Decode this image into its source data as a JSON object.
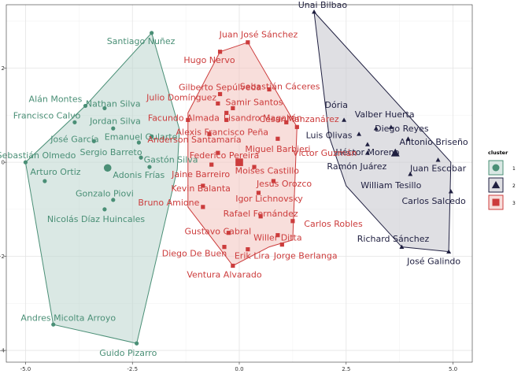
{
  "chart_data": {
    "type": "scatter",
    "xlim": [
      -5.45,
      5.45
    ],
    "ylim": [
      -4.25,
      3.35
    ],
    "x_ticks": [
      -5.0,
      -2.5,
      0.0,
      2.5,
      5.0
    ],
    "x_tick_labels": [
      "-5.0",
      "-2.5",
      "0.0",
      "2.5",
      "5.0"
    ],
    "y_ticks": [
      -4,
      -2,
      0,
      2
    ],
    "y_tick_labels": [
      "-4",
      "-2",
      "0",
      "2"
    ],
    "grid": true,
    "legend": {
      "title": "cluster",
      "position": "right",
      "entries": [
        {
          "label": "1",
          "shape": "circle",
          "color": "#4a8f76"
        },
        {
          "label": "2",
          "shape": "triangle",
          "color": "#1f1f40"
        },
        {
          "label": "3",
          "shape": "square",
          "color": "#cc3c3c"
        }
      ]
    },
    "clusters": [
      {
        "id": "1",
        "shape": "circle",
        "color": "#4a8f76",
        "fill": "#bcd6cd",
        "hull": [
          [
            -2.05,
            2.75
          ],
          [
            -1.4,
            0.7
          ],
          [
            -1.45,
            -0.15
          ],
          [
            -2.4,
            -3.85
          ],
          [
            -4.35,
            -3.45
          ],
          [
            -5.0,
            0.0
          ],
          [
            -3.6,
            1.2
          ]
        ],
        "centroid": [
          -3.08,
          -0.12
        ],
        "points": [
          {
            "name": "Santiago Nuñez",
            "x": -2.05,
            "y": 2.75,
            "lx": -2.3,
            "ly": 2.58
          },
          {
            "name": "Alán Montes",
            "x": -3.6,
            "y": 1.2,
            "lx": -4.3,
            "ly": 1.35
          },
          {
            "name": "Nathan Silva",
            "x": -3.15,
            "y": 1.15,
            "lx": -2.95,
            "ly": 1.25
          },
          {
            "name": "Francisco Calvo",
            "x": -3.85,
            "y": 0.85,
            "lx": -4.5,
            "ly": 1.0
          },
          {
            "name": "Jordan Silva",
            "x": -2.95,
            "y": 0.72,
            "lx": -2.9,
            "ly": 0.88
          },
          {
            "name": "José García",
            "x": -3.4,
            "y": 0.45,
            "lx": -3.85,
            "ly": 0.5
          },
          {
            "name": "Emanuel Gularte",
            "x": -2.05,
            "y": 0.55,
            "lx": -2.3,
            "ly": 0.55
          },
          {
            "name": "Sergio Barreto",
            "x": -2.35,
            "y": 0.42,
            "lx": -3.0,
            "ly": 0.22
          },
          {
            "name": "Sebastián Olmedo",
            "x": -5.0,
            "y": 0.0,
            "lx": -4.75,
            "ly": 0.15
          },
          {
            "name": "Gastón Silva",
            "x": -2.3,
            "y": 0.1,
            "lx": -1.6,
            "ly": 0.06
          },
          {
            "name": "Arturo Ortiz",
            "x": -4.55,
            "y": -0.4,
            "lx": -4.3,
            "ly": -0.2
          },
          {
            "name": "Adonis Frías",
            "x": -2.1,
            "y": -0.1,
            "lx": -2.35,
            "ly": -0.27
          },
          {
            "name": "Gonzalo Piovi",
            "x": -2.95,
            "y": -0.8,
            "lx": -3.15,
            "ly": -0.66
          },
          {
            "name": "Nicolás Díaz Huincales",
            "x": -3.15,
            "y": -1.0,
            "lx": -3.35,
            "ly": -1.2
          },
          {
            "name": "Andres Micolta Arroyo",
            "x": -4.35,
            "y": -3.45,
            "lx": -4.0,
            "ly": -3.3
          },
          {
            "name": "Guido Pizarro",
            "x": -2.4,
            "y": -3.85,
            "lx": -2.6,
            "ly": -4.05
          }
        ]
      },
      {
        "id": "2",
        "shape": "triangle",
        "color": "#1f1f40",
        "fill": "#c4c4cc",
        "hull": [
          [
            1.75,
            3.2
          ],
          [
            4.95,
            0.0
          ],
          [
            4.9,
            -1.9
          ],
          [
            3.8,
            -1.8
          ],
          [
            2.5,
            -0.5
          ],
          [
            2.1,
            0.55
          ]
        ],
        "centroid": [
          3.65,
          0.2
        ],
        "points": [
          {
            "name": "Unai Bilbao",
            "x": 1.75,
            "y": 3.2,
            "lx": 1.95,
            "ly": 3.35
          },
          {
            "name": "Dória",
            "x": 2.45,
            "y": 0.9,
            "lx": 2.27,
            "ly": 1.22
          },
          {
            "name": "Valber Huerta",
            "x": 3.55,
            "y": 0.75,
            "lx": 3.4,
            "ly": 1.02
          },
          {
            "name": "Luis Olivas",
            "x": 2.8,
            "y": 0.6,
            "lx": 2.1,
            "ly": 0.58
          },
          {
            "name": "Diego Reyes",
            "x": 3.2,
            "y": 0.72,
            "lx": 3.8,
            "ly": 0.72
          },
          {
            "name": "Antonio Briseño",
            "x": 3.95,
            "y": 0.5,
            "lx": 4.55,
            "ly": 0.44
          },
          {
            "name": "Héctor Moreno",
            "x": 3.0,
            "y": 0.38,
            "lx": 3.0,
            "ly": 0.22
          },
          {
            "name": "Ramón Juárez",
            "x": 3.0,
            "y": 0.2,
            "lx": 2.75,
            "ly": -0.08
          },
          {
            "name": "Juan Escobar",
            "x": 4.65,
            "y": 0.05,
            "lx": 4.65,
            "ly": -0.12
          },
          {
            "name": "William Tesillo",
            "x": 4.0,
            "y": -0.25,
            "lx": 3.55,
            "ly": -0.48
          },
          {
            "name": "Carlos Salcedo",
            "x": 4.95,
            "y": -0.62,
            "lx": 4.55,
            "ly": -0.82
          },
          {
            "name": "Richard Sánchez",
            "x": 3.8,
            "y": -1.8,
            "lx": 3.6,
            "ly": -1.62
          },
          {
            "name": "José Galindo",
            "x": 4.9,
            "y": -1.9,
            "lx": 4.55,
            "ly": -2.1
          }
        ]
      },
      {
        "id": "3",
        "shape": "square",
        "color": "#cc3c3c",
        "fill": "#f3c3be",
        "hull": [
          [
            -0.45,
            2.35
          ],
          [
            0.2,
            2.55
          ],
          [
            1.35,
            0.75
          ],
          [
            1.25,
            -1.65
          ],
          [
            0.7,
            -1.8
          ],
          [
            -0.15,
            -2.2
          ],
          [
            -1.2,
            -0.95
          ],
          [
            -1.2,
            1.05
          ]
        ],
        "centroid": [
          0.0,
          0.0
        ],
        "points": [
          {
            "name": "Juan José Sánchez",
            "x": 0.2,
            "y": 2.55,
            "lx": 0.45,
            "ly": 2.72
          },
          {
            "name": "Hugo Nervo",
            "x": -0.45,
            "y": 2.35,
            "lx": -0.7,
            "ly": 2.18
          },
          {
            "name": "Gilberto Sepúlveda",
            "x": -0.45,
            "y": 1.45,
            "lx": -0.45,
            "ly": 1.6
          },
          {
            "name": "Sebastián Cáceres",
            "x": 0.7,
            "y": 1.55,
            "lx": 0.95,
            "ly": 1.62
          },
          {
            "name": "Julio Domínguez",
            "x": -0.5,
            "y": 1.25,
            "lx": -1.35,
            "ly": 1.38
          },
          {
            "name": "Samir Santos",
            "x": -0.15,
            "y": 1.15,
            "lx": 0.35,
            "ly": 1.28
          },
          {
            "name": "Facundo Almada",
            "x": -1.2,
            "y": 0.9,
            "lx": -1.3,
            "ly": 0.95
          },
          {
            "name": "Lisandro Magallán",
            "x": -0.3,
            "y": 1.05,
            "lx": 0.55,
            "ly": 0.95
          },
          {
            "name": "Cesar Manzanárez",
            "x": 1.1,
            "y": 0.85,
            "lx": 1.4,
            "ly": 0.92
          },
          {
            "name": "Alexis Francisco Peña",
            "x": -0.3,
            "y": 0.9,
            "lx": -0.4,
            "ly": 0.65
          },
          {
            "name": "Víctor Guzmán",
            "x": 1.35,
            "y": 0.75,
            "lx": 2.0,
            "ly": 0.2
          },
          {
            "name": "Anderson Santamaría",
            "x": -0.7,
            "y": 0.6,
            "lx": -1.05,
            "ly": 0.49
          },
          {
            "name": "Miguel Barbieri",
            "x": 0.9,
            "y": 0.5,
            "lx": 0.9,
            "ly": 0.29
          },
          {
            "name": "Federico Pereira",
            "x": -0.5,
            "y": 0.2,
            "lx": -0.35,
            "ly": 0.15
          },
          {
            "name": "Moises Castillo",
            "x": 0.35,
            "y": -0.1,
            "lx": 0.65,
            "ly": -0.17
          },
          {
            "name": "Jaine Barreiro",
            "x": -0.65,
            "y": -0.05,
            "lx": -0.9,
            "ly": -0.25
          },
          {
            "name": "Jesús Orozco",
            "x": 0.8,
            "y": -0.4,
            "lx": 1.05,
            "ly": -0.45
          },
          {
            "name": "Kevin Balanta",
            "x": -0.85,
            "y": -0.5,
            "lx": -0.9,
            "ly": -0.55
          },
          {
            "name": "Igor Lichnovsky",
            "x": 0.45,
            "y": -0.65,
            "lx": 0.7,
            "ly": -0.77
          },
          {
            "name": "Bruno Amione",
            "x": -0.85,
            "y": -0.95,
            "lx": -1.65,
            "ly": -0.85
          },
          {
            "name": "Rafael Fernández",
            "x": 0.5,
            "y": -1.15,
            "lx": 0.5,
            "ly": -1.09
          },
          {
            "name": "Carlos Robles",
            "x": 1.25,
            "y": -1.25,
            "lx": 2.2,
            "ly": -1.3
          },
          {
            "name": "Gustavo Cabral",
            "x": -0.25,
            "y": -1.5,
            "lx": -0.5,
            "ly": -1.46
          },
          {
            "name": "Willer Ditta",
            "x": 0.9,
            "y": -1.55,
            "lx": 0.9,
            "ly": -1.6
          },
          {
            "name": "Diego De Buen",
            "x": -0.35,
            "y": -1.8,
            "lx": -1.05,
            "ly": -1.93
          },
          {
            "name": "Erik Lira",
            "x": 0.2,
            "y": -1.85,
            "lx": 0.3,
            "ly": -1.98
          },
          {
            "name": "Jorge Berlanga",
            "x": 1.0,
            "y": -1.75,
            "lx": 1.55,
            "ly": -1.98
          },
          {
            "name": "Ventura Alvarado",
            "x": -0.15,
            "y": -2.2,
            "lx": -0.35,
            "ly": -2.38
          }
        ]
      }
    ]
  }
}
